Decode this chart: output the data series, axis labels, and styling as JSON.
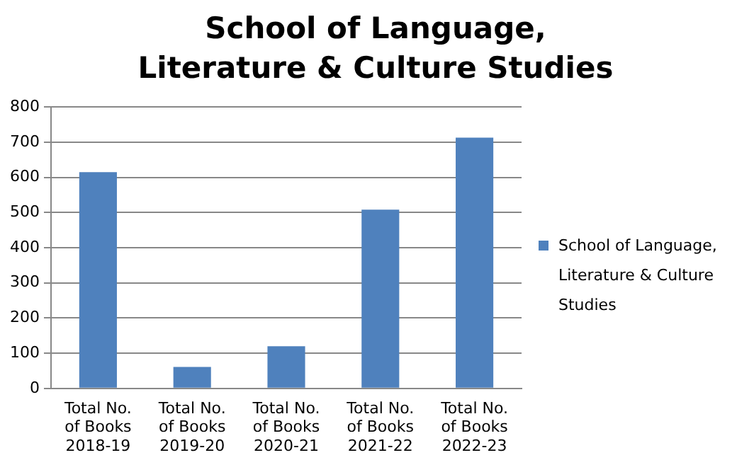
{
  "chart_data": {
    "type": "bar",
    "title": "School of Language, Literature & Culture Studies",
    "categories": [
      "Total No. of Books 2018-19",
      "Total No. of Books 2019-20",
      "Total No. of Books 2020-21",
      "Total No. of Books 2021-22",
      "Total No. of Books 2022-23"
    ],
    "series": [
      {
        "name": "School of Language, Literature & Culture Studies",
        "color": "#4f81bd",
        "values": [
          615,
          61,
          120,
          508,
          713
        ]
      }
    ],
    "ylim": [
      0,
      800
    ],
    "yticks": [
      0,
      100,
      200,
      300,
      400,
      500,
      600,
      700,
      800
    ],
    "grid": "y",
    "legend": "right"
  }
}
